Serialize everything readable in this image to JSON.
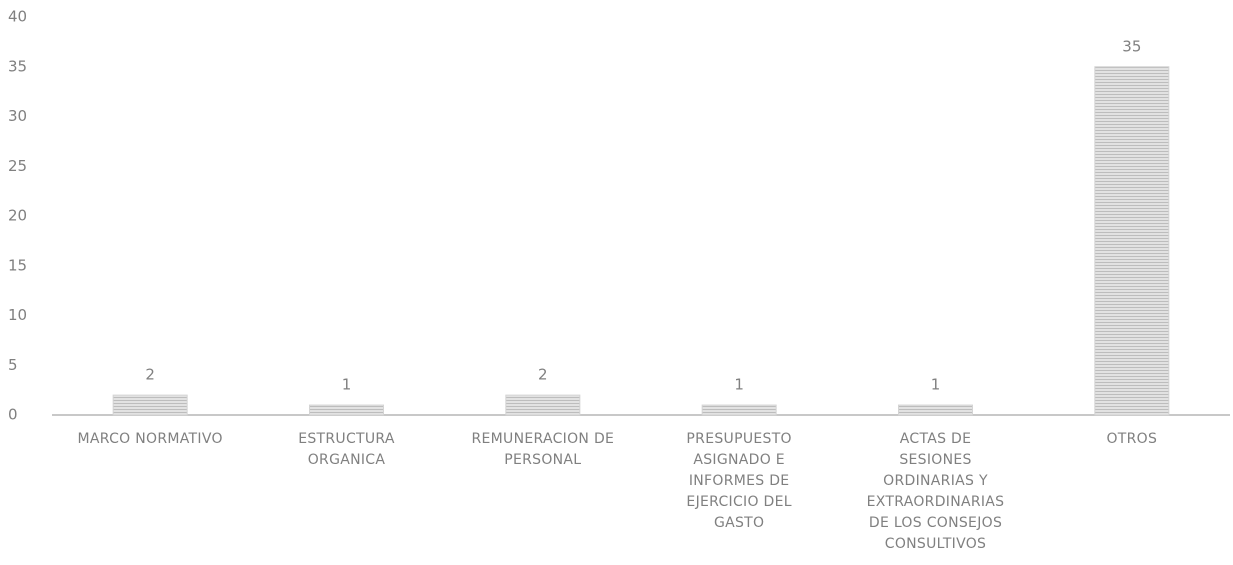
{
  "chart_data": {
    "type": "bar",
    "categories": [
      "MARCO NORMATIVO",
      "ESTRUCTURA ORGANICA",
      "REMUNERACION DE PERSONAL",
      "PRESUPUESTO ASIGNADO E INFORMES DE EJERCICIO DEL GASTO",
      "ACTAS DE SESIONES ORDINARIAS Y EXTRAORDINARIAS DE LOS CONSEJOS CONSULTIVOS",
      "OTROS"
    ],
    "values": [
      2,
      1,
      2,
      1,
      1,
      35
    ],
    "color": "#d4d4d4",
    "ylim": [
      0,
      40
    ],
    "yticks": [
      0,
      5,
      10,
      15,
      20,
      25,
      30,
      35,
      40
    ],
    "grid": false
  }
}
